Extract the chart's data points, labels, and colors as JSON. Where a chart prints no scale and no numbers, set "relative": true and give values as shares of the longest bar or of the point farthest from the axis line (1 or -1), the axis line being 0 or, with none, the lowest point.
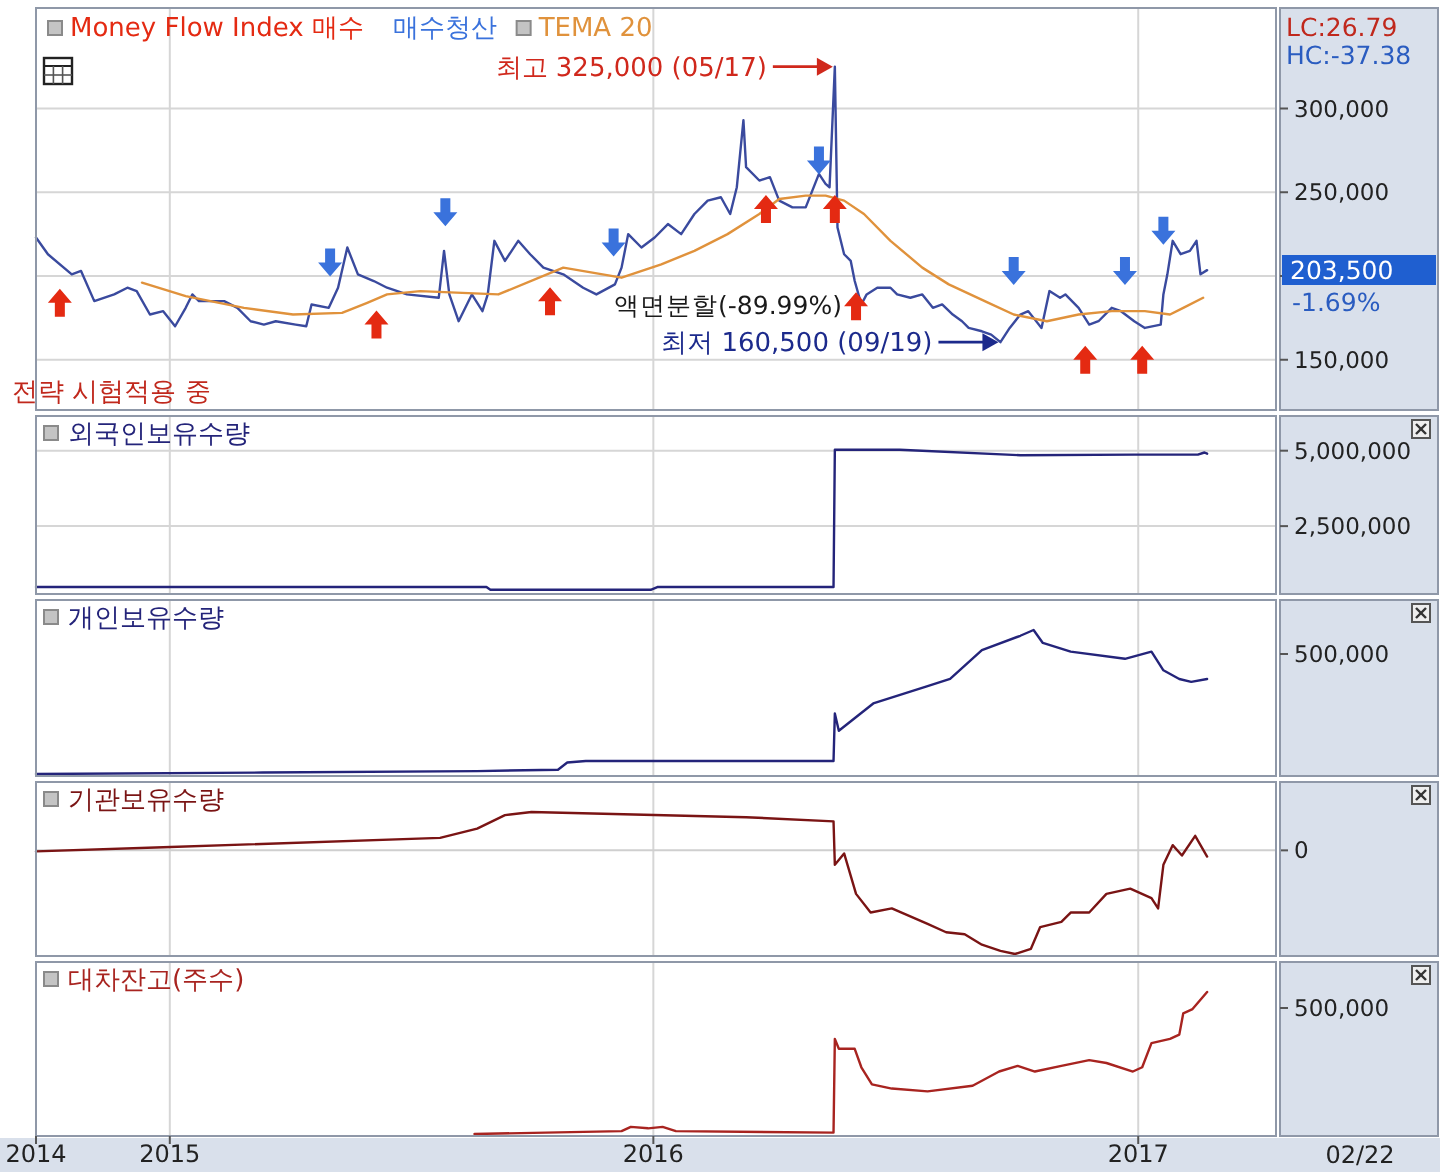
{
  "chart_data": [
    {
      "type": "line",
      "legend": "top left",
      "grid": true,
      "tick_labels": "y",
      "xlim": [
        "2014-09-22",
        "2017-04-15"
      ],
      "xticks": [
        {
          "value": "2014-09-22",
          "label": null
        },
        {
          "value": "2015-01-01",
          "label": null
        },
        {
          "value": "2016-01-01",
          "label": null
        },
        {
          "value": "2017-01-01",
          "label": null
        }
      ],
      "ylim": [
        120000,
        360000
      ],
      "yticks": [
        {
          "value": 150000,
          "label": "150,000"
        },
        {
          "value": 200000,
          "label": null
        },
        {
          "value": 250000,
          "label": "250,000"
        },
        {
          "value": 300000,
          "label": "300,000"
        }
      ],
      "series": [
        {
          "color": "#3a4a9e",
          "x": [
            "2014-09-22",
            "2014-10-01",
            "2014-10-19",
            "2014-10-26",
            "2014-11-05",
            "2014-11-20",
            "2014-11-30",
            "2014-12-07",
            "2014-12-17",
            "2014-12-27",
            "2015-01-05",
            "2015-01-13",
            "2015-01-18",
            "2015-01-23",
            "2015-02-11",
            "2015-02-21",
            "2015-03-03",
            "2015-03-13",
            "2015-03-22",
            "2015-04-06",
            "2015-04-14",
            "2015-04-18",
            "2015-05-01",
            "2015-05-08",
            "2015-05-15",
            "2015-05-23",
            "2015-06-04",
            "2015-06-14",
            "2015-06-29",
            "2015-07-23",
            "2015-07-27",
            "2015-07-31",
            "2015-08-07",
            "2015-08-17",
            "2015-08-25",
            "2015-08-29",
            "2015-09-03",
            "2015-09-11",
            "2015-09-21",
            "2015-09-30",
            "2015-10-10",
            "2015-10-25",
            "2015-11-09",
            "2015-11-19",
            "2015-12-03",
            "2015-12-08",
            "2015-12-13",
            "2015-12-23",
            "2016-01-02",
            "2016-01-12",
            "2016-01-22",
            "2016-02-01",
            "2016-02-11",
            "2016-02-21",
            "2016-02-28",
            "2016-03-04",
            "2016-03-09",
            "2016-03-11",
            "2016-03-21",
            "2016-03-29",
            "2016-04-05",
            "2016-04-15",
            "2016-04-25",
            "2016-05-05",
            "2016-05-10",
            "2016-05-13",
            "2016-05-17",
            "2016-05-19",
            "2016-05-24",
            "2016-05-29",
            "2016-06-01",
            "2016-06-06",
            "2016-06-10",
            "2016-06-18",
            "2016-06-28",
            "2016-07-03",
            "2016-07-13",
            "2016-07-22",
            "2016-07-30",
            "2016-08-06",
            "2016-08-14",
            "2016-08-21",
            "2016-08-26",
            "2016-09-05",
            "2016-09-12",
            "2016-09-19",
            "2016-09-26",
            "2016-10-04",
            "2016-10-10",
            "2016-10-14",
            "2016-10-20",
            "2016-10-26",
            "2016-11-03",
            "2016-11-07",
            "2016-11-17",
            "2016-11-25",
            "2016-12-02",
            "2016-12-12",
            "2016-12-19",
            "2016-12-29",
            "2017-01-06",
            "2017-01-18",
            "2017-01-20",
            "2017-01-23",
            "2017-01-27",
            "2017-02-02",
            "2017-02-09",
            "2017-02-14",
            "2017-02-17",
            "2017-02-22"
          ],
          "values": [
            223000,
            213000,
            201000,
            203000,
            185000,
            189000,
            193000,
            191000,
            177000,
            179000,
            170000,
            181000,
            189000,
            185000,
            185000,
            181000,
            173000,
            171000,
            173000,
            171000,
            170000,
            183000,
            181000,
            193000,
            217000,
            201000,
            197000,
            193000,
            189000,
            187000,
            215000,
            189000,
            173000,
            189000,
            179000,
            189000,
            221000,
            209000,
            221000,
            213000,
            205000,
            201000,
            193000,
            189000,
            195000,
            205000,
            225000,
            217000,
            223000,
            231000,
            225000,
            237000,
            245000,
            247000,
            237000,
            253000,
            293000,
            265000,
            257000,
            259000,
            245000,
            241000,
            241000,
            261000,
            255000,
            253000,
            325000,
            229000,
            213000,
            209000,
            197000,
            183000,
            189000,
            193000,
            193000,
            189000,
            187000,
            189000,
            181000,
            183000,
            177000,
            173000,
            169000,
            167000,
            165000,
            160500,
            169000,
            177000,
            179000,
            175000,
            169000,
            191000,
            187000,
            189000,
            181000,
            171000,
            173000,
            181000,
            179000,
            173000,
            169000,
            171000,
            189000,
            201000,
            221000,
            213000,
            215000,
            221000,
            201000,
            203500
          ]
        },
        {
          "type": "scatter",
          "name": "Money Flow Index 매수",
          "color": "#e42a12",
          "marker": "triangle",
          "x": [
            "2014-10-10",
            "2015-06-06",
            "2015-10-15",
            "2016-03-26",
            "2016-05-17",
            "2016-06-02",
            "2016-11-22",
            "2017-01-04"
          ],
          "values": [
            184000,
            171000,
            185000,
            240000,
            240000,
            182000,
            150000,
            150000
          ]
        },
        {
          "type": "scatter",
          "name": "매수청산",
          "color": "#3a72dc",
          "marker": "triangle",
          "x": [
            "2015-05-02",
            "2015-07-28",
            "2015-12-02",
            "2016-05-05",
            "2016-09-29",
            "2016-12-22",
            "2017-01-20"
          ],
          "values": [
            208000,
            238000,
            220000,
            269000,
            203000,
            203000,
            227000
          ]
        },
        {
          "name": "TEMA 20",
          "color": "#e0923c",
          "x": [
            "2014-12-11",
            "2015-01-13",
            "2015-02-26",
            "2015-04-04",
            "2015-05-11",
            "2015-05-30",
            "2015-06-14",
            "2015-07-09",
            "2015-09-06",
            "2015-10-25",
            "2015-12-08",
            "2016-01-07",
            "2016-02-01",
            "2016-02-26",
            "2016-03-21",
            "2016-04-05",
            "2016-04-25",
            "2016-05-10",
            "2016-05-24",
            "2016-06-08",
            "2016-06-28",
            "2016-07-22",
            "2016-08-11",
            "2016-09-10",
            "2016-09-29",
            "2016-10-24",
            "2016-11-17",
            "2016-12-12",
            "2017-01-06",
            "2017-01-25",
            "2017-02-04",
            "2017-02-19"
          ],
          "values": [
            196000,
            188000,
            181000,
            177000,
            178000,
            184000,
            189000,
            191000,
            189000,
            205000,
            199000,
            207000,
            215000,
            225000,
            237000,
            246000,
            248000,
            248000,
            245000,
            237000,
            221000,
            205000,
            195000,
            184000,
            177000,
            173000,
            177000,
            179000,
            179000,
            177000,
            181000,
            187000
          ]
        }
      ],
      "annotations": [
        {
          "text": "최고 325,000 (05/17)",
          "x": "2016-05-17",
          "y": 325000
        },
        {
          "text": "최저 160,500 (09/19)",
          "x": "2016-09-19",
          "y": 160500
        },
        "203,500",
        "-1.69%",
        "액면분할(-89.99%)",
        "전략 시험적용 중",
        "LC:26.79",
        "HC:-37.38"
      ]
    },
    {
      "type": "line",
      "title": "외국인보유수량",
      "grid": true,
      "tick_labels": "y",
      "xlim": [
        "2014-09-22",
        "2017-04-15"
      ],
      "xticks": [
        {
          "value": "2014-09-22",
          "label": null
        },
        {
          "value": "2015-01-01",
          "label": null
        },
        {
          "value": "2016-01-01",
          "label": null
        },
        {
          "value": "2017-01-01",
          "label": null
        }
      ],
      "ylim": [
        250000,
        6150000
      ],
      "yticks": [
        {
          "value": 2500000,
          "label": "2,500,000"
        },
        {
          "value": 5000000,
          "label": "5,000,000"
        }
      ],
      "series": [
        {
          "color": "#24247a",
          "x": [
            "2014-09-22",
            "2015-08-28",
            "2015-08-31",
            "2015-12-30",
            "2016-01-04",
            "2016-05-16",
            "2016-05-17",
            "2016-07-05",
            "2016-10-04",
            "2016-12-29",
            "2017-02-15",
            "2017-02-20",
            "2017-02-22"
          ],
          "values": [
            480000,
            480000,
            390000,
            390000,
            480000,
            480000,
            5030000,
            5030000,
            4850000,
            4870000,
            4870000,
            4940000,
            4900000
          ]
        }
      ]
    },
    {
      "type": "line",
      "title": "개인보유수량",
      "relative": true,
      "grid": "x",
      "tick_labels": false,
      "xlim": [
        "2014-09-22",
        "2017-04-15"
      ],
      "xticks": [
        {
          "value": "2014-09-22",
          "label": null
        },
        {
          "value": "2015-01-01",
          "label": null
        },
        {
          "value": "2016-01-01",
          "label": null
        },
        {
          "value": "2017-01-01",
          "label": null
        }
      ],
      "series": [
        {
          "color": "#24247a",
          "x": [
            "2014-09-22",
            "2015-03-12",
            "2015-08-21",
            "2015-10-21",
            "2015-10-28",
            "2015-11-11",
            "2016-05-16",
            "2016-05-17",
            "2016-05-20",
            "2016-06-15",
            "2016-07-26",
            "2016-08-12",
            "2016-09-05",
            "2016-10-04",
            "2016-10-14",
            "2016-10-21",
            "2016-11-11",
            "2016-12-22",
            "2017-01-11",
            "2017-01-20",
            "2017-02-01",
            "2017-02-10",
            "2017-02-22"
          ],
          "values": [
            0,
            0.01,
            0.02,
            0.03,
            0.08,
            0.09,
            0.09,
            0.42,
            0.3,
            0.49,
            0.61,
            0.66,
            0.86,
            0.96,
            1,
            0.91,
            0.85,
            0.8,
            0.85,
            0.72,
            0.66,
            0.64,
            0.66
          ]
        }
      ],
      "annotations": [
        "500,000"
      ]
    },
    {
      "type": "line",
      "title": "기관보유수량",
      "relative": true,
      "grid": "x",
      "tick_labels": false,
      "xlim": [
        "2014-09-22",
        "2017-04-15"
      ],
      "xticks": [
        {
          "value": "2014-09-22",
          "label": null
        },
        {
          "value": "2015-01-01",
          "label": null
        },
        {
          "value": "2016-01-01",
          "label": null
        },
        {
          "value": "2017-01-01",
          "label": null
        }
      ],
      "ref_lines": [
        {
          "axis": "y",
          "value": 0,
          "label": "0",
          "color": "#cfcfcf"
        }
      ],
      "series": [
        {
          "color": "#7a1414",
          "x": [
            "2014-09-22",
            "2014-12-27",
            "2015-07-24",
            "2015-08-21",
            "2015-09-11",
            "2015-10-01",
            "2016-03-11",
            "2016-05-16",
            "2016-05-17",
            "2016-05-24",
            "2016-06-02",
            "2016-06-13",
            "2016-06-29",
            "2016-07-26",
            "2016-08-09",
            "2016-08-23",
            "2016-09-05",
            "2016-09-19",
            "2016-09-30",
            "2016-10-12",
            "2016-10-19",
            "2016-11-04",
            "2016-11-11",
            "2016-11-25",
            "2016-12-08",
            "2016-12-26",
            "2017-01-11",
            "2017-01-16",
            "2017-01-20",
            "2017-01-27",
            "2017-02-03",
            "2017-02-13",
            "2017-02-22"
          ],
          "values": [
            -0.01,
            0.03,
            0.12,
            0.21,
            0.34,
            0.37,
            0.32,
            0.28,
            -0.14,
            -0.03,
            -0.42,
            -0.6,
            -0.56,
            -0.71,
            -0.79,
            -0.81,
            -0.91,
            -0.97,
            -1,
            -0.95,
            -0.74,
            -0.69,
            -0.6,
            -0.6,
            -0.42,
            -0.37,
            -0.46,
            -0.56,
            -0.14,
            0.05,
            -0.05,
            0.14,
            -0.06
          ]
        }
      ]
    },
    {
      "type": "line",
      "title": "대차잔고(주수)",
      "relative": true,
      "grid": "x",
      "tick_labels": "x",
      "xlim": [
        "2014-09-22",
        "2017-04-15"
      ],
      "xticks": [
        {
          "value": "2014-09-22",
          "label": "2014"
        },
        {
          "value": "2015-01-01",
          "label": "2015"
        },
        {
          "value": "2016-01-01",
          "label": "2016"
        },
        {
          "value": "2017-01-01",
          "label": "2017"
        }
      ],
      "series": [
        {
          "color": "#a82420",
          "x": [
            "2015-08-19",
            "2015-12-08",
            "2015-12-15",
            "2015-12-28",
            "2016-01-08",
            "2016-01-18",
            "2016-05-16",
            "2016-05-17",
            "2016-05-20",
            "2016-06-01",
            "2016-06-06",
            "2016-06-14",
            "2016-06-29",
            "2016-07-26",
            "2016-08-29",
            "2016-09-18",
            "2016-10-02",
            "2016-10-15",
            "2016-11-04",
            "2016-11-25",
            "2016-12-08",
            "2016-12-28",
            "2017-01-04",
            "2017-01-11",
            "2017-01-25",
            "2017-02-01",
            "2017-02-04",
            "2017-02-11",
            "2017-02-22"
          ],
          "values": [
            0,
            0.02,
            0.05,
            0.04,
            0.05,
            0.02,
            0.01,
            0.67,
            0.6,
            0.6,
            0.47,
            0.35,
            0.32,
            0.3,
            0.34,
            0.44,
            0.48,
            0.44,
            0.48,
            0.52,
            0.5,
            0.44,
            0.47,
            0.64,
            0.67,
            0.7,
            0.85,
            0.88,
            1
          ]
        }
      ],
      "annotations": [
        "500,000",
        "02/22"
      ]
    }
  ]
}
